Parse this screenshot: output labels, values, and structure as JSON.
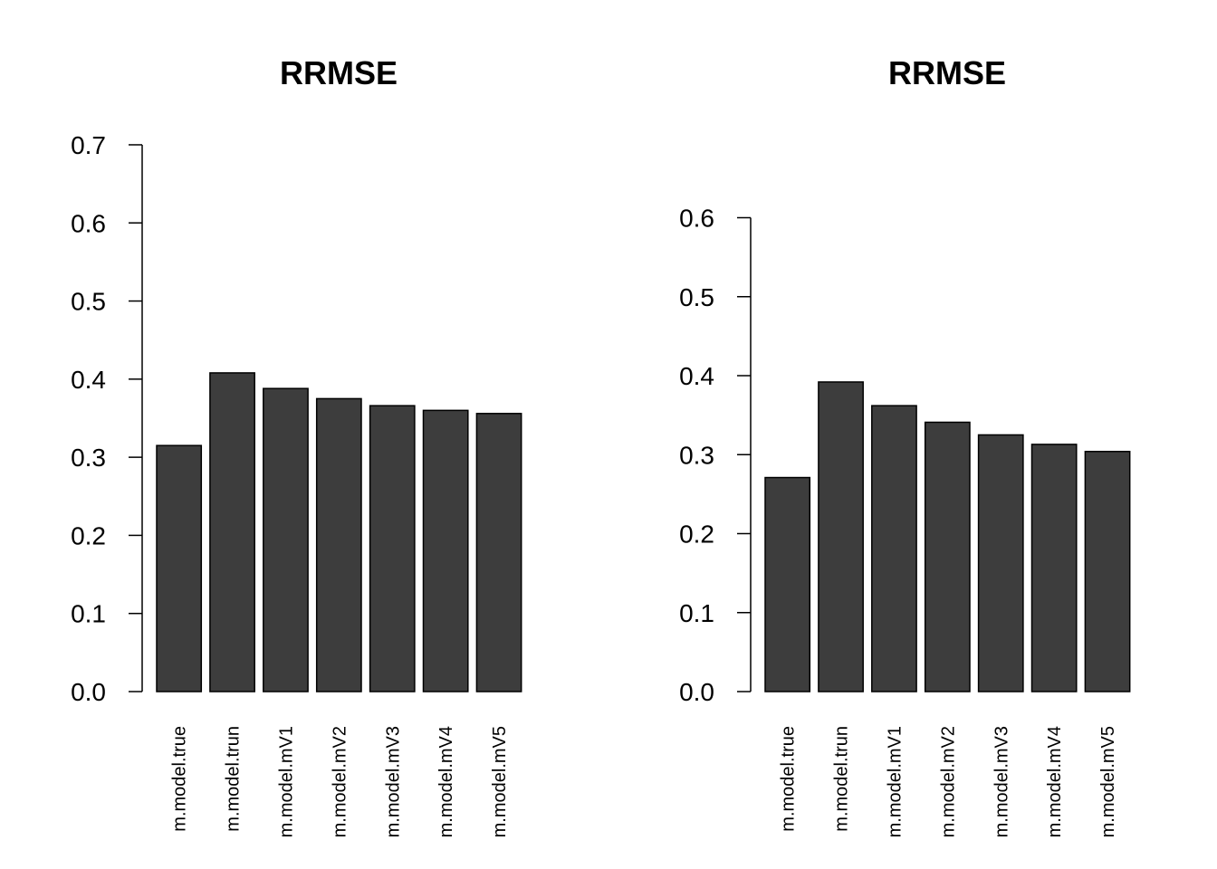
{
  "chart_data": [
    {
      "type": "bar",
      "title": "RRMSE",
      "xlabel": "",
      "ylabel": "",
      "categories": [
        "m.model.true",
        "m.model.trun",
        "m.model.mV1",
        "m.model.mV2",
        "m.model.mV3",
        "m.model.mV4",
        "m.model.mV5"
      ],
      "values": [
        0.315,
        0.408,
        0.388,
        0.375,
        0.366,
        0.36,
        0.356
      ],
      "yticks": [
        "0.0",
        "0.1",
        "0.2",
        "0.3",
        "0.4",
        "0.5",
        "0.6",
        "0.7"
      ],
      "ylim": [
        0,
        0.7
      ],
      "grid": false,
      "bar_color": "#3d3d3d",
      "bar_edge_color": "#000000"
    },
    {
      "type": "bar",
      "title": "RRMSE",
      "xlabel": "",
      "ylabel": "",
      "categories": [
        "m.model.true",
        "m.model.trun",
        "m.model.mV1",
        "m.model.mV2",
        "m.model.mV3",
        "m.model.mV4",
        "m.model.mV5"
      ],
      "values": [
        0.271,
        0.392,
        0.362,
        0.341,
        0.325,
        0.313,
        0.304
      ],
      "yticks": [
        "0.0",
        "0.1",
        "0.2",
        "0.3",
        "0.4",
        "0.5",
        "0.6"
      ],
      "ylim": [
        0,
        0.6
      ],
      "grid": false,
      "bar_color": "#3d3d3d",
      "bar_edge_color": "#000000"
    }
  ]
}
